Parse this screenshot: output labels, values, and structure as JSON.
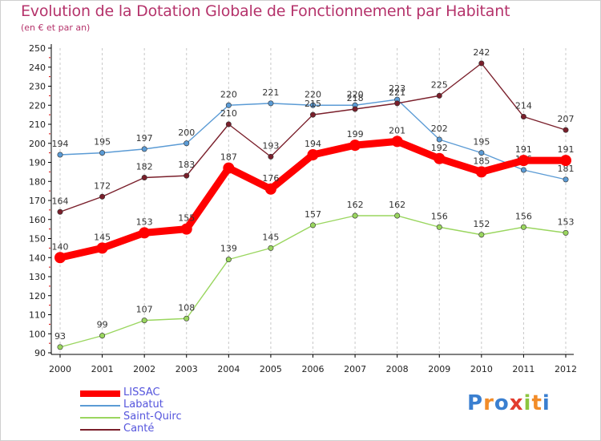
{
  "title": "Evolution de la Dotation Globale de Fonctionnement par Habitant",
  "subtitle": "(en € et par an)",
  "logo": {
    "text": "Proxiti",
    "letters": [
      "P",
      "r",
      "o",
      "x",
      "i",
      "t",
      "i"
    ],
    "colors": [
      "#3a7fd0",
      "#f28c28",
      "#3a7fd0",
      "#e23b2e",
      "#8cc63f",
      "#f28c28",
      "#3a7fd0"
    ]
  },
  "chart_data": {
    "type": "line",
    "title": "Evolution de la Dotation Globale de Fonctionnement par Habitant",
    "subtitle": "(en € et par an)",
    "xlabel": "",
    "ylabel": "",
    "categories": [
      "2000",
      "2001",
      "2002",
      "2003",
      "2004",
      "2005",
      "2006",
      "2007",
      "2008",
      "2009",
      "2010",
      "2011",
      "2012"
    ],
    "ylim": [
      90,
      250
    ],
    "yticks": [
      90,
      100,
      110,
      120,
      130,
      140,
      150,
      160,
      170,
      180,
      190,
      200,
      210,
      220,
      230,
      240,
      250
    ],
    "grid": "vertical",
    "legend_position": "bottom-left",
    "series": [
      {
        "name": "Labatut",
        "color": "#5b9bd5",
        "values": [
          194,
          195,
          197,
          200,
          220,
          221,
          220,
          220,
          223,
          202,
          195,
          186,
          181
        ]
      },
      {
        "name": "Saint-Quirc",
        "color": "#9ad65f",
        "values": [
          93,
          99,
          107,
          108,
          139,
          145,
          157,
          162,
          162,
          156,
          152,
          156,
          153
        ]
      },
      {
        "name": "Canté",
        "color": "#7a1f2b",
        "values": [
          164,
          172,
          182,
          183,
          210,
          193,
          215,
          218,
          221,
          225,
          242,
          214,
          207
        ]
      },
      {
        "name": "LISSAC",
        "color": "#ff0000",
        "values": [
          140,
          145,
          153,
          155,
          187,
          176,
          194,
          199,
          201,
          192,
          185,
          191,
          191
        ]
      }
    ],
    "legend": [
      {
        "name": "LISSAC",
        "color": "#ff0000",
        "label_color": "#5555dd"
      },
      {
        "name": "Labatut",
        "color": "#5b9bd5",
        "label_color": "#5555dd"
      },
      {
        "name": "Saint-Quirc",
        "color": "#9ad65f",
        "label_color": "#5555dd"
      },
      {
        "name": "Canté",
        "color": "#7a1f2b",
        "label_color": "#5555dd"
      }
    ]
  }
}
